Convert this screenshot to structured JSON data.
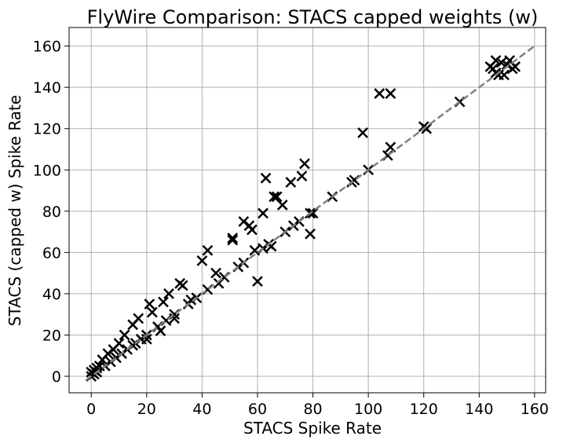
{
  "chart_data": {
    "type": "scatter",
    "title": "FlyWire Comparison: STACS capped weights (w)",
    "x_label": "STACS Spike Rate",
    "y_label": "STACS (capped w) Spike Rate",
    "marker": "x",
    "color": "#000000",
    "grid": true,
    "x": [
      104,
      108,
      98,
      120,
      121,
      133,
      107,
      108,
      100,
      94,
      95,
      87,
      79,
      80,
      79,
      77,
      76,
      72,
      66,
      67,
      69,
      63,
      62,
      60,
      59,
      57,
      55,
      58,
      51,
      51,
      42,
      40,
      45,
      55,
      62,
      64,
      75,
      70,
      73,
      48,
      38,
      33,
      32,
      28,
      26,
      22,
      21,
      17,
      15,
      12,
      10,
      8,
      6,
      4,
      3,
      2,
      0,
      1,
      5,
      7,
      9,
      11,
      13,
      16,
      18,
      20,
      24,
      27,
      30,
      35,
      36,
      42,
      46,
      53,
      65,
      1,
      2,
      0,
      15,
      20,
      25,
      30,
      145,
      146,
      148,
      149,
      150,
      152,
      153,
      147,
      144,
      151,
      146
    ],
    "values": [
      137,
      137,
      118,
      121,
      120,
      133,
      107,
      111,
      100,
      94,
      95,
      87,
      79,
      79,
      69,
      103,
      97,
      94,
      87,
      87,
      83,
      96,
      79,
      46,
      61,
      73,
      75,
      71,
      67,
      66,
      61,
      56,
      50,
      55,
      62,
      64,
      75,
      70,
      73,
      48,
      38,
      44,
      45,
      40,
      36,
      31,
      35,
      28,
      25,
      20,
      16,
      13,
      11,
      8,
      5,
      2,
      0,
      1,
      5,
      7,
      9,
      11,
      13,
      16,
      18,
      20,
      24,
      27,
      30,
      35,
      37,
      42,
      45,
      53,
      63,
      3,
      4,
      2,
      15,
      18,
      22,
      28,
      149,
      153,
      152,
      146,
      151,
      149,
      150,
      146,
      150,
      153,
      147
    ],
    "reference_line": {
      "x": [
        -2,
        160
      ],
      "y": [
        -2,
        160
      ],
      "color": "#808080"
    },
    "xlim": [
      -8,
      164
    ],
    "ylim": [
      -8,
      169
    ],
    "xticks": [
      0,
      20,
      40,
      60,
      80,
      100,
      120,
      140,
      160
    ],
    "yticks": [
      0,
      20,
      40,
      60,
      80,
      100,
      120,
      140,
      160
    ]
  }
}
